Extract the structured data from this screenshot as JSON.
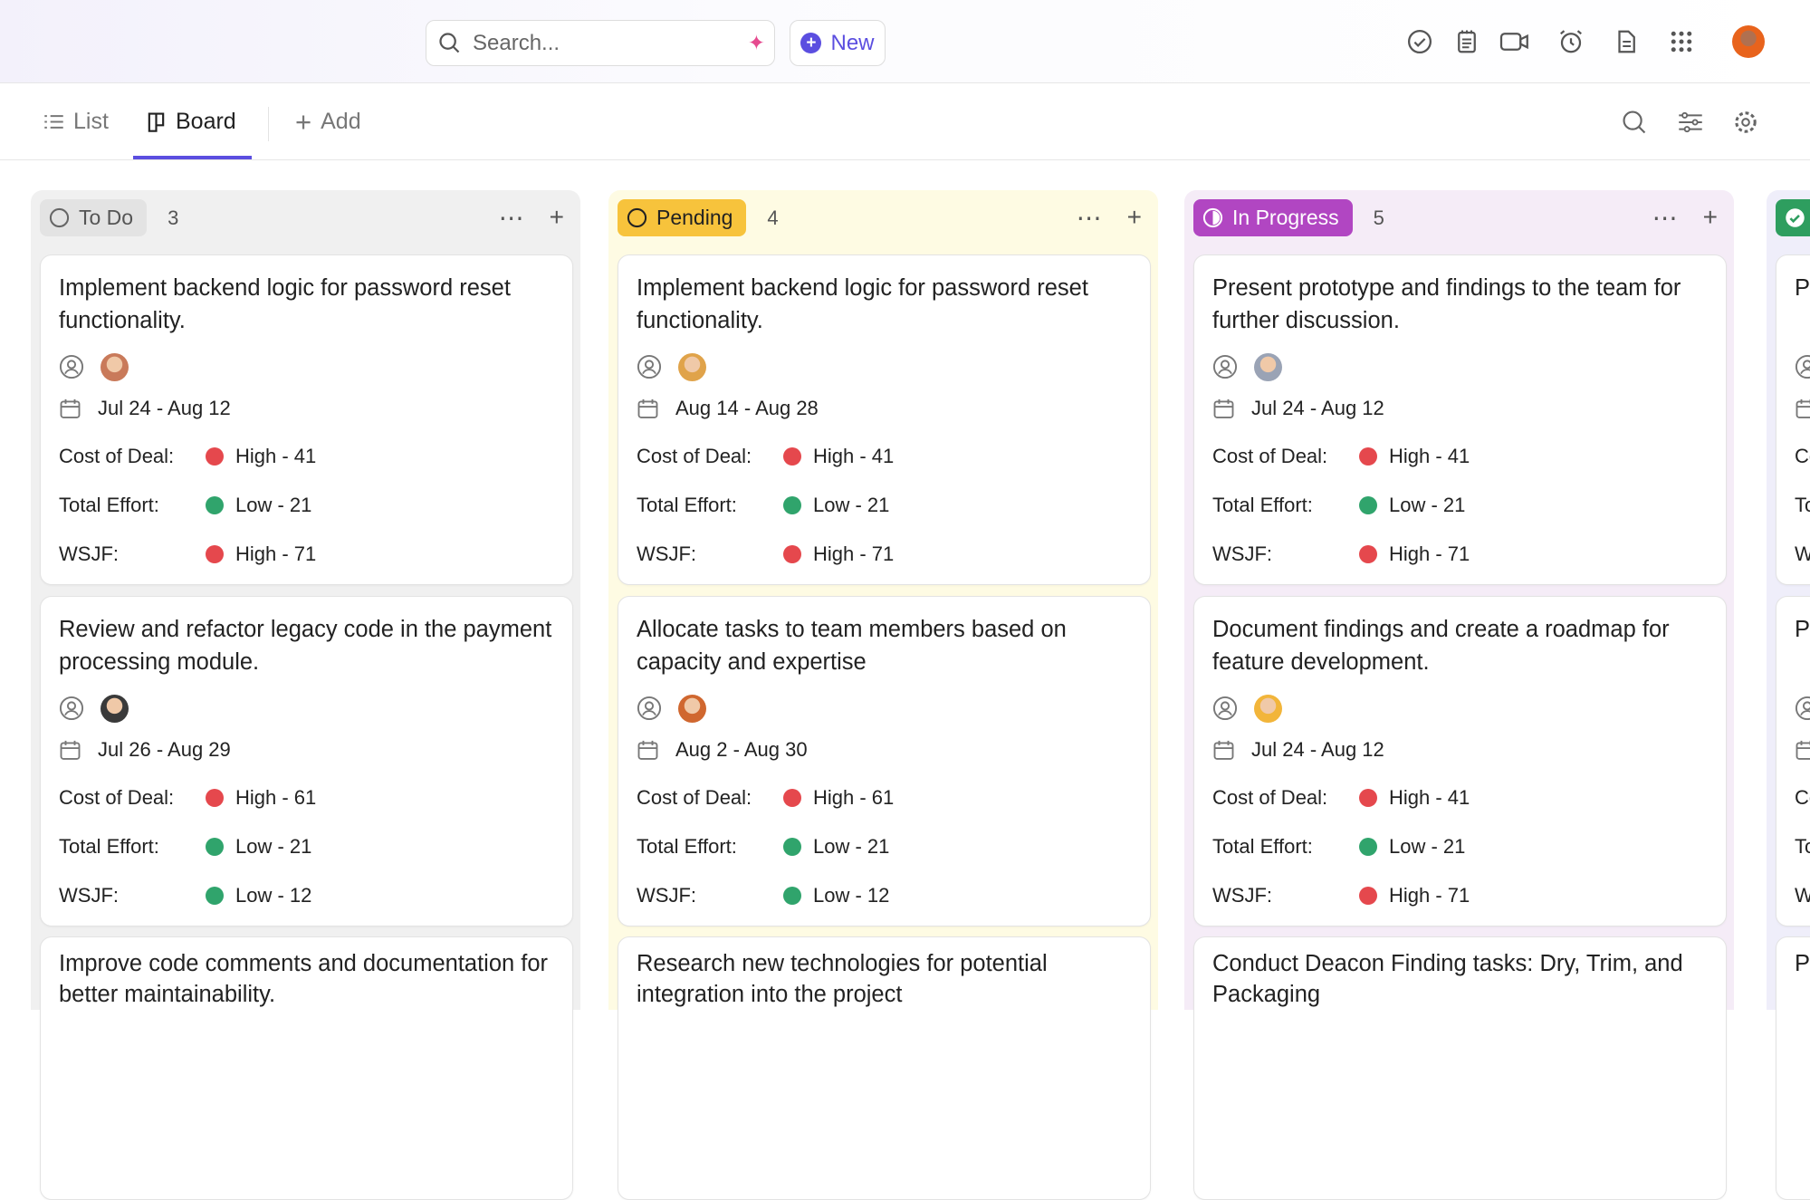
{
  "topbar": {
    "search_placeholder": "Search...",
    "new_label": "New",
    "icons": [
      "check-circle-icon",
      "notepad-icon",
      "video-icon",
      "alarm-icon",
      "document-icon",
      "apps-grid-icon"
    ]
  },
  "tabs": {
    "list": "List",
    "board": "Board",
    "add": "Add",
    "active": "Board"
  },
  "colors": {
    "red": "#e5484d",
    "green": "#30a46c",
    "accent": "#5b4ee0"
  },
  "columns": [
    {
      "name": "To Do",
      "count": "3",
      "bg": "#f0f0f0",
      "pill_bg": "#e3e3e3",
      "pill_fg": "#555",
      "cards": [
        {
          "title": "Implement backend logic for password reset functionality.",
          "dates": "Jul 24 - Aug 12",
          "avatar": "#c97a5a",
          "fields": [
            {
              "label": "Cost of Deal:",
              "value": "High - 41",
              "level": "red"
            },
            {
              "label": "Total Effort:",
              "value": "Low - 21",
              "level": "green"
            },
            {
              "label": "WSJF:",
              "value": "High - 71",
              "level": "red"
            }
          ]
        },
        {
          "title": "Review and refactor legacy code in the payment processing module.",
          "dates": "Jul 26 - Aug 29",
          "avatar": "#3a3a3a",
          "fields": [
            {
              "label": "Cost of Deal:",
              "value": "High - 61",
              "level": "red"
            },
            {
              "label": "Total Effort:",
              "value": "Low - 21",
              "level": "green"
            },
            {
              "label": "WSJF:",
              "value": "Low - 12",
              "level": "green"
            }
          ]
        },
        {
          "title": "Improve code comments and documentation for better maintainability.",
          "dates": "",
          "avatar": "",
          "fields": []
        }
      ]
    },
    {
      "name": "Pending",
      "count": "4",
      "bg": "#fefbe3",
      "pill_bg": "#f7c33c",
      "pill_fg": "#222",
      "cards": [
        {
          "title": "Implement backend logic for password reset functionality.",
          "dates": "Aug 14 - Aug 28",
          "avatar": "#e0a34a",
          "fields": [
            {
              "label": "Cost of Deal:",
              "value": "High - 41",
              "level": "red"
            },
            {
              "label": "Total Effort:",
              "value": "Low - 21",
              "level": "green"
            },
            {
              "label": "WSJF:",
              "value": "High - 71",
              "level": "red"
            }
          ]
        },
        {
          "title": "Allocate tasks to team members based on capacity and expertise",
          "dates": "Aug 2 - Aug 30",
          "avatar": "#d0672f",
          "fields": [
            {
              "label": "Cost of Deal:",
              "value": "High - 61",
              "level": "red"
            },
            {
              "label": "Total Effort:",
              "value": "Low - 21",
              "level": "green"
            },
            {
              "label": "WSJF:",
              "value": "Low - 12",
              "level": "green"
            }
          ]
        },
        {
          "title": "Research new technologies for potential integration into the project",
          "dates": "",
          "avatar": "",
          "fields": []
        }
      ]
    },
    {
      "name": "In Progress",
      "count": "5",
      "bg": "#f5ecf7",
      "pill_bg": "#b146c2",
      "pill_fg": "#fff",
      "cards": [
        {
          "title": "Present prototype and findings to the team for further discussion.",
          "dates": "Jul 24 - Aug 12",
          "avatar": "#9aa3b5",
          "fields": [
            {
              "label": "Cost of Deal:",
              "value": "High - 41",
              "level": "red"
            },
            {
              "label": "Total Effort:",
              "value": "Low - 21",
              "level": "green"
            },
            {
              "label": "WSJF:",
              "value": "High - 71",
              "level": "red"
            }
          ]
        },
        {
          "title": "Document findings and create a roadmap for feature development.",
          "dates": "Jul 24 - Aug 12",
          "avatar": "#f2b53a",
          "fields": [
            {
              "label": "Cost of Deal:",
              "value": "High - 41",
              "level": "red"
            },
            {
              "label": "Total Effort:",
              "value": "Low - 21",
              "level": "green"
            },
            {
              "label": "WSJF:",
              "value": "High - 71",
              "level": "red"
            }
          ]
        },
        {
          "title": "Conduct Deacon Finding tasks: Dry, Trim, and Packaging",
          "dates": "",
          "avatar": "",
          "fields": []
        }
      ]
    },
    {
      "name": "",
      "count": "",
      "bg": "#efeefa",
      "pill_bg": "#2e9e5f",
      "pill_fg": "#fff",
      "cards": [
        {
          "title": "Pr fo",
          "dates": "",
          "avatar": "#999",
          "fields": [
            {
              "label": "Co",
              "value": "",
              "level": ""
            },
            {
              "label": "To",
              "value": "",
              "level": ""
            },
            {
              "label": "W",
              "value": "",
              "level": ""
            }
          ]
        },
        {
          "title": "Pr fo",
          "dates": "",
          "avatar": "#999",
          "fields": [
            {
              "label": "Co",
              "value": "",
              "level": ""
            },
            {
              "label": "To",
              "value": "",
              "level": ""
            },
            {
              "label": "W",
              "value": "",
              "level": ""
            }
          ]
        },
        {
          "title": "Pr fo",
          "dates": "",
          "avatar": "",
          "fields": []
        }
      ]
    }
  ]
}
